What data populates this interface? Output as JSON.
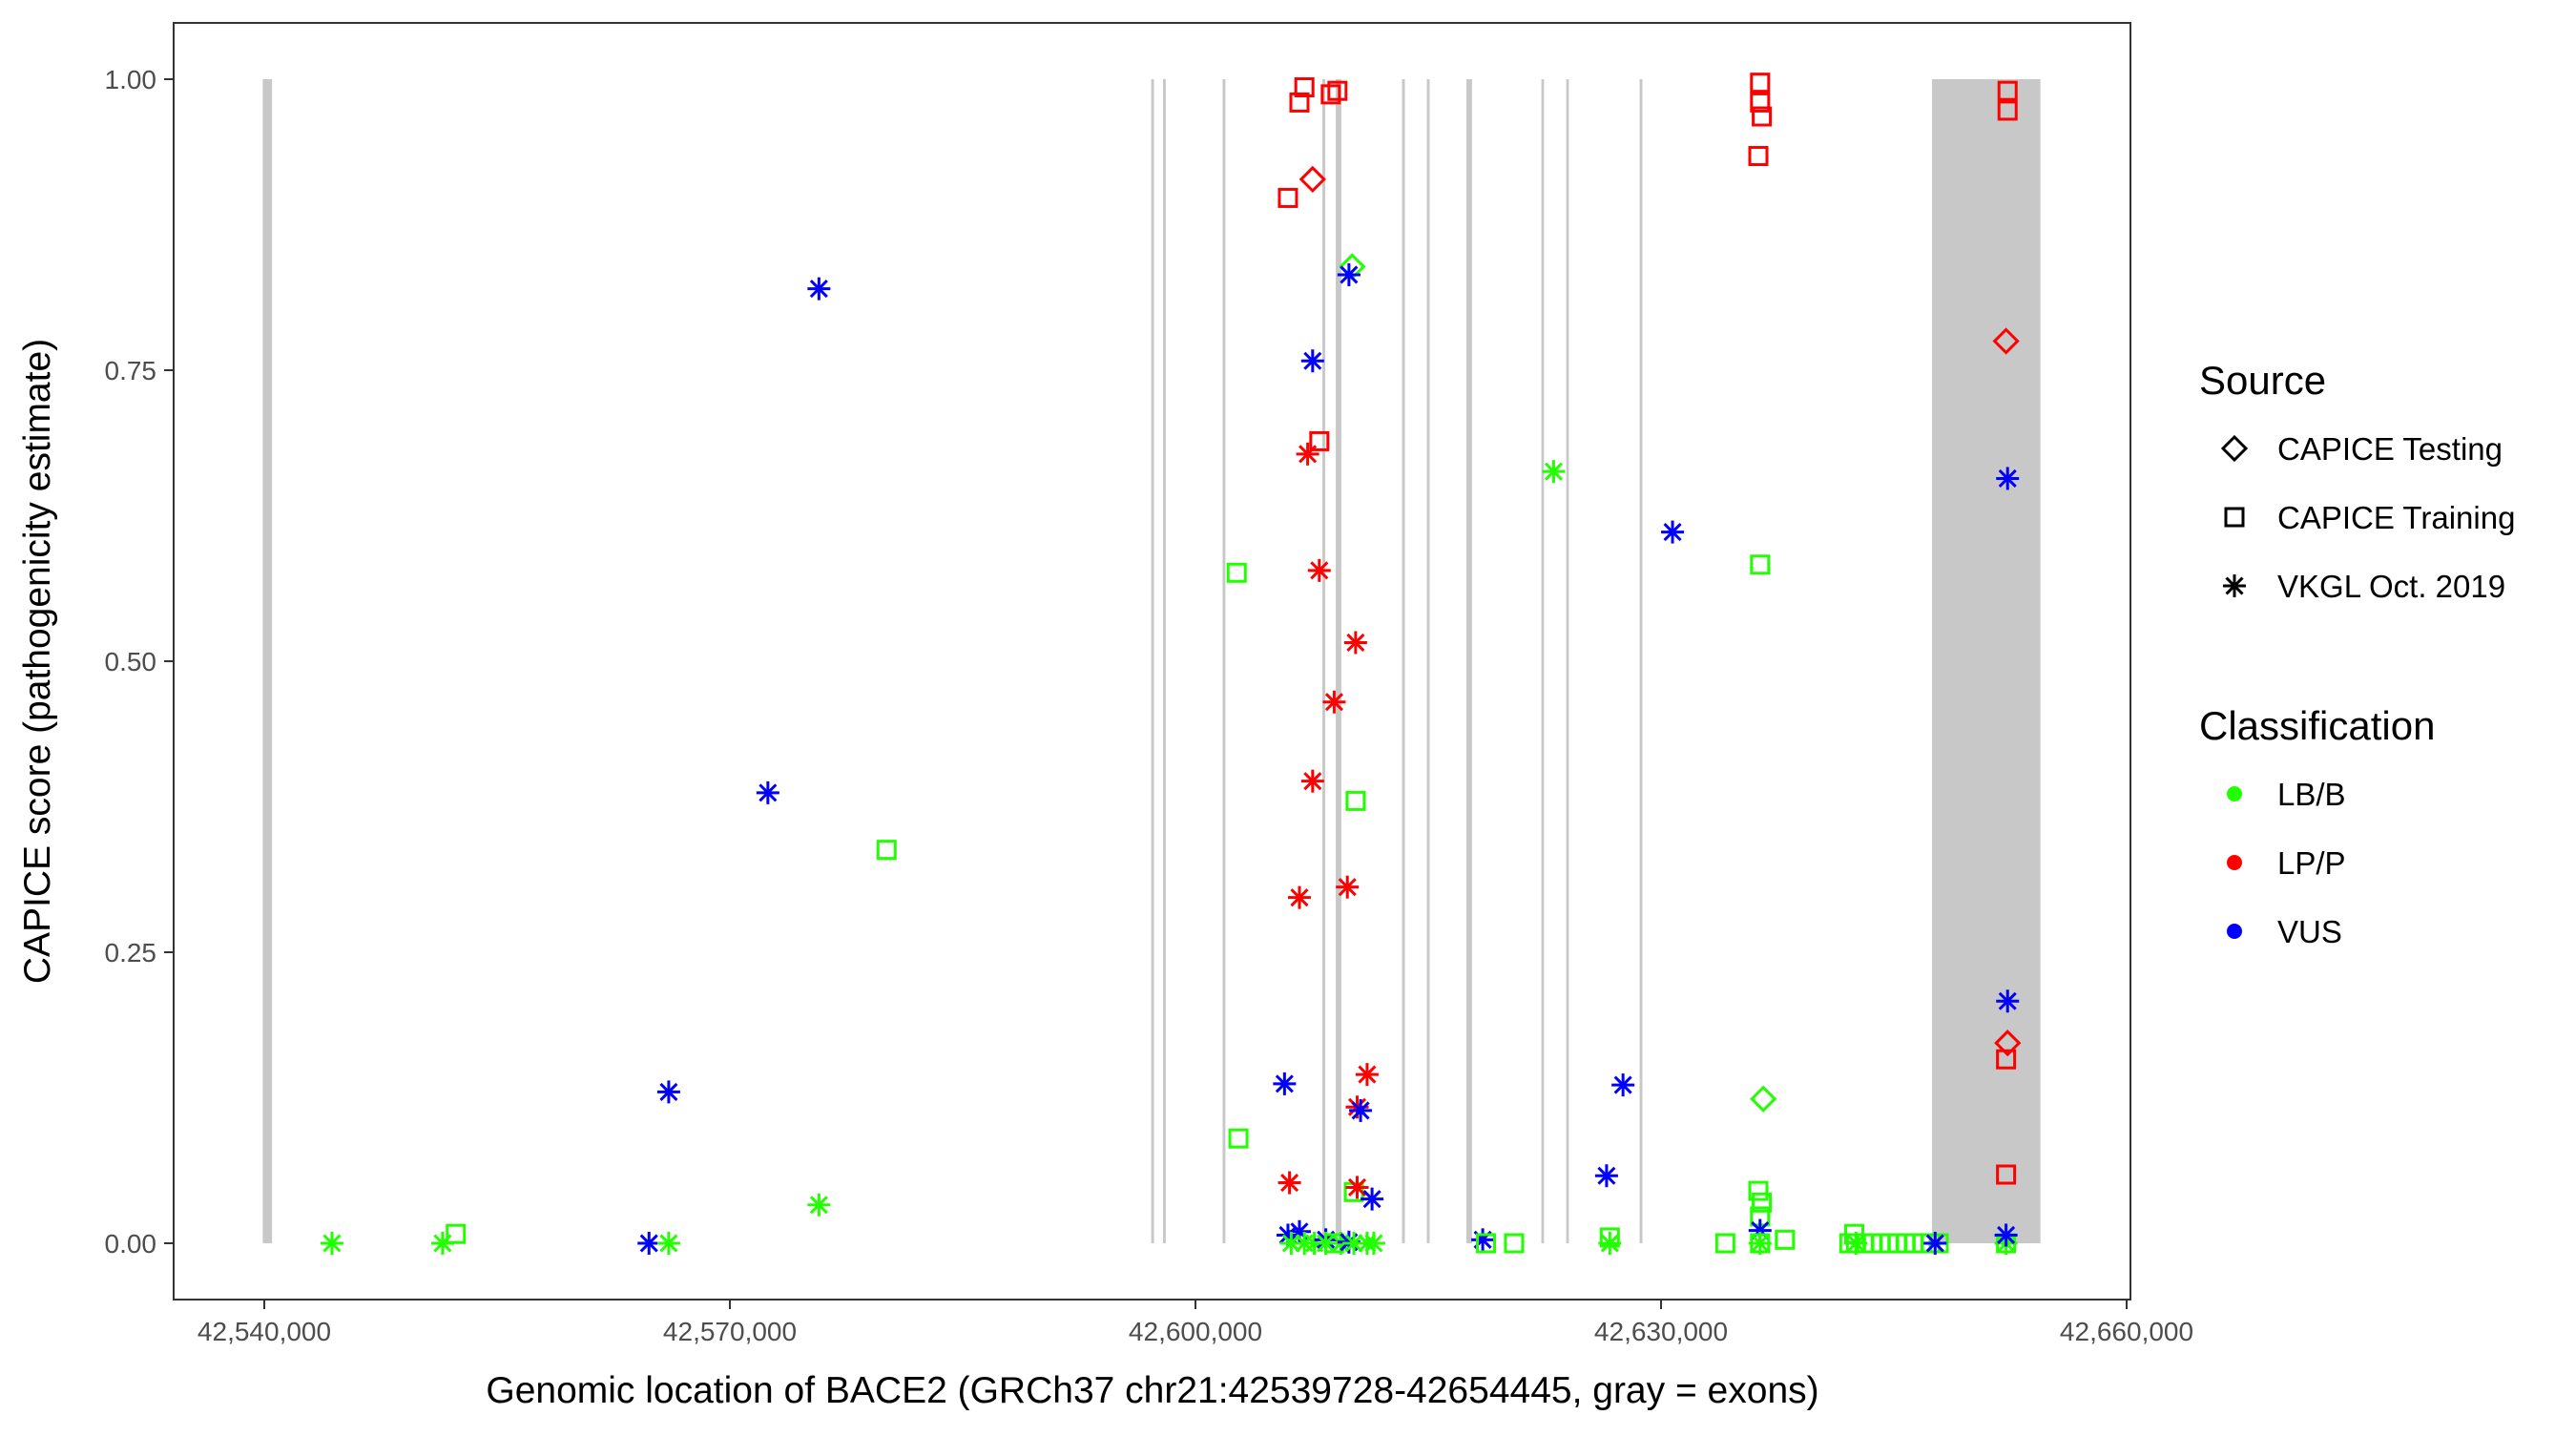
{
  "chart_data": {
    "type": "scatter",
    "title": "",
    "xlabel": "Genomic location of BACE2 (GRCh37 chr21:42539728-42654445, gray = exons)",
    "ylabel": "CAPICE score (pathogenicity estimate)",
    "xlim": [
      42536600,
      42660200
    ],
    "ylim": [
      -0.047,
      1.047
    ],
    "x_ticks": [
      42540000,
      42570000,
      42600000,
      42630000,
      42660000
    ],
    "x_tick_labels": [
      "42,540,000",
      "42,570,000",
      "42,600,000",
      "42,630,000",
      "42,660,000"
    ],
    "y_ticks": [
      0,
      0.25,
      0.5,
      0.75,
      1
    ],
    "y_tick_labels": [
      "0.00",
      "0.25",
      "0.50",
      "0.75",
      "1.00"
    ],
    "grid": false,
    "exon_color": "#c8c8c8",
    "exons": [
      [
        42539900,
        42540500
      ],
      [
        42597150,
        42597330
      ],
      [
        42597910,
        42598090
      ],
      [
        42601750,
        42601930
      ],
      [
        42608180,
        42608360
      ],
      [
        42609040,
        42609400
      ],
      [
        42613310,
        42613490
      ],
      [
        42614910,
        42615090
      ],
      [
        42617460,
        42617820
      ],
      [
        42622290,
        42622460
      ],
      [
        42623890,
        42624060
      ],
      [
        42628620,
        42628800
      ],
      [
        42647460,
        42654445
      ]
    ],
    "legend": {
      "placement": "right",
      "source_title": "Source",
      "source_items": [
        {
          "label": "CAPICE Testing",
          "shape": "diamond"
        },
        {
          "label": "CAPICE Training",
          "shape": "square"
        },
        {
          "label": "VKGL Oct. 2019",
          "shape": "asterisk"
        }
      ],
      "class_title": "Classification",
      "class_items": [
        {
          "label": "LB/B",
          "color": "#22ff00"
        },
        {
          "label": "LP/P",
          "color": "#ff0000"
        },
        {
          "label": "VUS",
          "color": "#0000ff"
        }
      ]
    },
    "points": [
      {
        "x": 42544360,
        "y": 0,
        "s": "asterisk",
        "c": "LB/B"
      },
      {
        "x": 42551490,
        "y": 0,
        "s": "asterisk",
        "c": "LB/B"
      },
      {
        "x": 42552340,
        "y": 0.008,
        "s": "square",
        "c": "LB/B"
      },
      {
        "x": 42564790,
        "y": 0,
        "s": "asterisk",
        "c": "VUS"
      },
      {
        "x": 42566060,
        "y": 0,
        "s": "asterisk",
        "c": "LB/B"
      },
      {
        "x": 42566060,
        "y": 0.13,
        "s": "asterisk",
        "c": "VUS"
      },
      {
        "x": 42575740,
        "y": 0.033,
        "s": "asterisk",
        "c": "LB/B"
      },
      {
        "x": 42575740,
        "y": 0.82,
        "s": "asterisk",
        "c": "VUS"
      },
      {
        "x": 42572450,
        "y": 0.387,
        "s": "asterisk",
        "c": "VUS"
      },
      {
        "x": 42580100,
        "y": 0.338,
        "s": "square",
        "c": "LB/B"
      },
      {
        "x": 42602660,
        "y": 0.576,
        "s": "square",
        "c": "LB/B"
      },
      {
        "x": 42602770,
        "y": 0.09,
        "s": "square",
        "c": "LB/B"
      },
      {
        "x": 42606700,
        "y": 0.98,
        "s": "square",
        "c": "LP/P"
      },
      {
        "x": 42607020,
        "y": 0.993,
        "s": "square",
        "c": "LP/P"
      },
      {
        "x": 42608720,
        "y": 0.987,
        "s": "square",
        "c": "LP/P"
      },
      {
        "x": 42609150,
        "y": 0.99,
        "s": "square",
        "c": "LP/P"
      },
      {
        "x": 42607550,
        "y": 0.914,
        "s": "diamond",
        "c": "LP/P"
      },
      {
        "x": 42605960,
        "y": 0.898,
        "s": "square",
        "c": "LP/P"
      },
      {
        "x": 42610100,
        "y": 0.839,
        "s": "diamond",
        "c": "LB/B"
      },
      {
        "x": 42609890,
        "y": 0.832,
        "s": "asterisk",
        "c": "VUS"
      },
      {
        "x": 42607550,
        "y": 0.758,
        "s": "asterisk",
        "c": "VUS"
      },
      {
        "x": 42607980,
        "y": 0.689,
        "s": "square",
        "c": "LP/P"
      },
      {
        "x": 42607230,
        "y": 0.678,
        "s": "asterisk",
        "c": "LP/P"
      },
      {
        "x": 42607980,
        "y": 0.578,
        "s": "asterisk",
        "c": "LP/P"
      },
      {
        "x": 42610320,
        "y": 0.516,
        "s": "asterisk",
        "c": "LP/P"
      },
      {
        "x": 42608940,
        "y": 0.465,
        "s": "asterisk",
        "c": "LP/P"
      },
      {
        "x": 42607550,
        "y": 0.397,
        "s": "asterisk",
        "c": "LP/P"
      },
      {
        "x": 42610320,
        "y": 0.38,
        "s": "square",
        "c": "LB/B"
      },
      {
        "x": 42606700,
        "y": 0.297,
        "s": "asterisk",
        "c": "LP/P"
      },
      {
        "x": 42609790,
        "y": 0.306,
        "s": "asterisk",
        "c": "LP/P"
      },
      {
        "x": 42605740,
        "y": 0.137,
        "s": "asterisk",
        "c": "VUS"
      },
      {
        "x": 42611060,
        "y": 0.145,
        "s": "asterisk",
        "c": "LP/P"
      },
      {
        "x": 42610420,
        "y": 0.117,
        "s": "asterisk",
        "c": "LP/P"
      },
      {
        "x": 42610640,
        "y": 0.114,
        "s": "asterisk",
        "c": "VUS"
      },
      {
        "x": 42606060,
        "y": 0.052,
        "s": "asterisk",
        "c": "LP/P"
      },
      {
        "x": 42610210,
        "y": 0.044,
        "s": "square",
        "c": "LB/B"
      },
      {
        "x": 42610420,
        "y": 0.048,
        "s": "asterisk",
        "c": "LP/P"
      },
      {
        "x": 42611380,
        "y": 0.038,
        "s": "asterisk",
        "c": "VUS"
      },
      {
        "x": 42605960,
        "y": 0.007,
        "s": "asterisk",
        "c": "VUS"
      },
      {
        "x": 42606700,
        "y": 0.01,
        "s": "asterisk",
        "c": "VUS"
      },
      {
        "x": 42606170,
        "y": 0,
        "s": "asterisk",
        "c": "LB/B"
      },
      {
        "x": 42607020,
        "y": 0,
        "s": "asterisk",
        "c": "LB/B"
      },
      {
        "x": 42607660,
        "y": 0,
        "s": "asterisk",
        "c": "LB/B"
      },
      {
        "x": 42608400,
        "y": 0.003,
        "s": "asterisk",
        "c": "VUS"
      },
      {
        "x": 42608400,
        "y": 0,
        "s": "asterisk",
        "c": "LB/B"
      },
      {
        "x": 42608940,
        "y": 0,
        "s": "square",
        "c": "LB/B"
      },
      {
        "x": 42609360,
        "y": 0,
        "s": "asterisk",
        "c": "LB/B"
      },
      {
        "x": 42609890,
        "y": 0.001,
        "s": "asterisk",
        "c": "VUS"
      },
      {
        "x": 42610210,
        "y": 0,
        "s": "asterisk",
        "c": "LB/B"
      },
      {
        "x": 42611060,
        "y": 0,
        "s": "asterisk",
        "c": "LB/B"
      },
      {
        "x": 42611490,
        "y": 0,
        "s": "asterisk",
        "c": "LB/B"
      },
      {
        "x": 42618510,
        "y": 0.003,
        "s": "asterisk",
        "c": "VUS"
      },
      {
        "x": 42618720,
        "y": 0,
        "s": "square",
        "c": "LB/B"
      },
      {
        "x": 42620530,
        "y": 0,
        "s": "square",
        "c": "LB/B"
      },
      {
        "x": 42623080,
        "y": 0.663,
        "s": "asterisk",
        "c": "LB/B"
      },
      {
        "x": 42630740,
        "y": 0.611,
        "s": "asterisk",
        "c": "VUS"
      },
      {
        "x": 42627550,
        "y": 0.136,
        "s": "asterisk",
        "c": "VUS"
      },
      {
        "x": 42626490,
        "y": 0.058,
        "s": "asterisk",
        "c": "VUS"
      },
      {
        "x": 42626700,
        "y": 0.005,
        "s": "square",
        "c": "LB/B"
      },
      {
        "x": 42626700,
        "y": 0,
        "s": "asterisk",
        "c": "LB/B"
      },
      {
        "x": 42634140,
        "y": 0,
        "s": "square",
        "c": "LB/B"
      },
      {
        "x": 42636380,
        "y": 0.583,
        "s": "square",
        "c": "LB/B"
      },
      {
        "x": 42636590,
        "y": 0.124,
        "s": "diamond",
        "c": "LB/B"
      },
      {
        "x": 42636270,
        "y": 0.045,
        "s": "square",
        "c": "LB/B"
      },
      {
        "x": 42636490,
        "y": 0.035,
        "s": "square",
        "c": "LB/B"
      },
      {
        "x": 42636380,
        "y": 0.023,
        "s": "square",
        "c": "LB/B"
      },
      {
        "x": 42636380,
        "y": 0.011,
        "s": "asterisk",
        "c": "VUS"
      },
      {
        "x": 42636380,
        "y": 0,
        "s": "square",
        "c": "LB/B"
      },
      {
        "x": 42636380,
        "y": 0,
        "s": "asterisk",
        "c": "LB/B"
      },
      {
        "x": 42637980,
        "y": 0.003,
        "s": "square",
        "c": "LB/B"
      },
      {
        "x": 42636380,
        "y": 0.997,
        "s": "square",
        "c": "LP/P"
      },
      {
        "x": 42636380,
        "y": 0.98,
        "s": "square",
        "c": "LP/P"
      },
      {
        "x": 42636490,
        "y": 0.968,
        "s": "square",
        "c": "LP/P"
      },
      {
        "x": 42636270,
        "y": 0.934,
        "s": "square",
        "c": "LP/P"
      },
      {
        "x": 42642450,
        "y": 0.008,
        "s": "square",
        "c": "LB/B"
      },
      {
        "x": 42642130,
        "y": 0,
        "s": "square",
        "c": "LB/B"
      },
      {
        "x": 42642560,
        "y": 0,
        "s": "square",
        "c": "LB/B"
      },
      {
        "x": 42642560,
        "y": 0,
        "s": "asterisk",
        "c": "LB/B"
      },
      {
        "x": 42643100,
        "y": 0,
        "s": "square",
        "c": "LB/B"
      },
      {
        "x": 42643630,
        "y": 0,
        "s": "square",
        "c": "LB/B"
      },
      {
        "x": 42644160,
        "y": 0,
        "s": "square",
        "c": "LB/B"
      },
      {
        "x": 42644700,
        "y": 0,
        "s": "square",
        "c": "LB/B"
      },
      {
        "x": 42645230,
        "y": 0,
        "s": "square",
        "c": "LB/B"
      },
      {
        "x": 42645760,
        "y": 0,
        "s": "square",
        "c": "LB/B"
      },
      {
        "x": 42646290,
        "y": 0,
        "s": "square",
        "c": "LB/B"
      },
      {
        "x": 42646830,
        "y": 0,
        "s": "square",
        "c": "LB/B"
      },
      {
        "x": 42647360,
        "y": 0,
        "s": "square",
        "c": "LB/B"
      },
      {
        "x": 42647890,
        "y": 0,
        "s": "square",
        "c": "LB/B"
      },
      {
        "x": 42647660,
        "y": 0,
        "s": "asterisk",
        "c": "VUS"
      },
      {
        "x": 42652330,
        "y": 0.99,
        "s": "square",
        "c": "LP/P"
      },
      {
        "x": 42652330,
        "y": 0.973,
        "s": "square",
        "c": "LP/P"
      },
      {
        "x": 42652230,
        "y": 0.775,
        "s": "diamond",
        "c": "LP/P"
      },
      {
        "x": 42652330,
        "y": 0.657,
        "s": "asterisk",
        "c": "VUS"
      },
      {
        "x": 42652330,
        "y": 0.208,
        "s": "asterisk",
        "c": "VUS"
      },
      {
        "x": 42652330,
        "y": 0.172,
        "s": "diamond",
        "c": "LP/P"
      },
      {
        "x": 42652230,
        "y": 0.158,
        "s": "square",
        "c": "LP/P"
      },
      {
        "x": 42652230,
        "y": 0.059,
        "s": "square",
        "c": "LP/P"
      },
      {
        "x": 42652230,
        "y": 0,
        "s": "square",
        "c": "LB/B"
      },
      {
        "x": 42652230,
        "y": 0,
        "s": "asterisk",
        "c": "LB/B"
      },
      {
        "x": 42652230,
        "y": 0.007,
        "s": "asterisk",
        "c": "VUS"
      }
    ]
  }
}
